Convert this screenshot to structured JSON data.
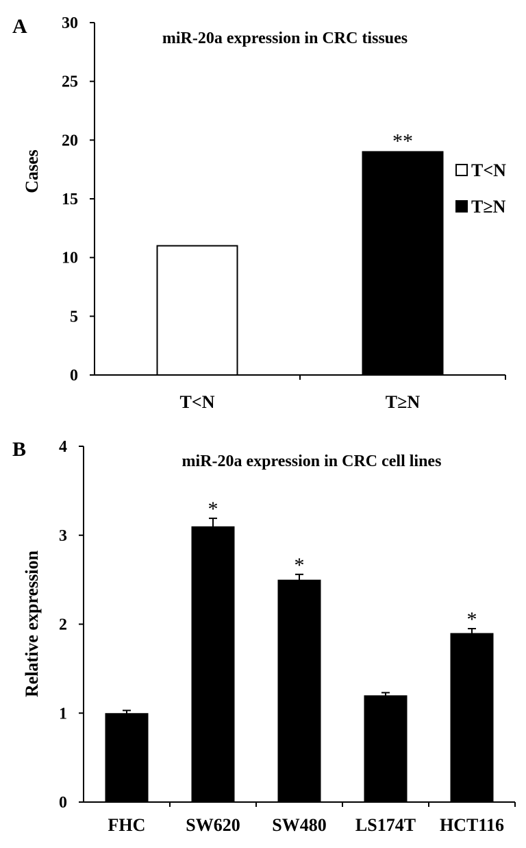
{
  "chart_data": [
    {
      "panel": "A",
      "type": "bar",
      "title": "miR-20a expression in CRC tissues",
      "xlabel": "",
      "ylabel": "Cases",
      "ylim": [
        0,
        30
      ],
      "yticks": [
        "0",
        "5",
        "10",
        "15",
        "20",
        "25",
        "30"
      ],
      "categories": [
        "T<N",
        "T≥N"
      ],
      "values": [
        11,
        19
      ],
      "bar_colors": [
        "#ffffff",
        "#000000"
      ],
      "significance": [
        "",
        "**"
      ],
      "legend": [
        {
          "label": "T<N",
          "color": "#ffffff"
        },
        {
          "label": "T≥N",
          "color": "#000000"
        }
      ],
      "legend_position": "right"
    },
    {
      "panel": "B",
      "type": "bar",
      "title": "miR-20a expression in CRC cell lines",
      "xlabel": "",
      "ylabel": "Relative expression",
      "ylim": [
        0,
        4
      ],
      "yticks": [
        "0",
        "1",
        "2",
        "3",
        "4"
      ],
      "categories": [
        "FHC",
        "SW620",
        "SW480",
        "LS174T",
        "HCT116"
      ],
      "values": [
        1.0,
        3.1,
        2.5,
        1.2,
        1.9
      ],
      "errors": [
        0.03,
        0.09,
        0.06,
        0.03,
        0.05
      ],
      "bar_color": "#000000",
      "significance": [
        "",
        "*",
        "*",
        "",
        "*"
      ]
    }
  ]
}
